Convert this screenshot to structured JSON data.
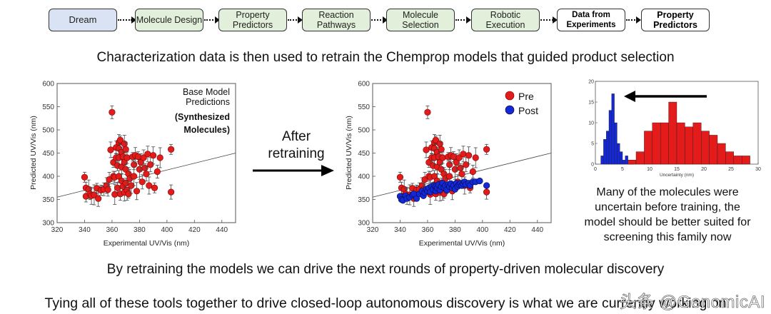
{
  "pipeline": {
    "steps": [
      {
        "label": "Dream",
        "style": "dream"
      },
      {
        "label": "Molecule Design",
        "style": "green"
      },
      {
        "label": "Property Predictors",
        "style": "green"
      },
      {
        "label": "Reaction Pathways",
        "style": "green"
      },
      {
        "label": "Molecule Selection",
        "style": "green"
      },
      {
        "label": "Robotic Execution",
        "style": "green"
      },
      {
        "label": "Data from Experiments",
        "style": "bold"
      },
      {
        "label": "Property Predictors",
        "style": "bold"
      }
    ]
  },
  "headline_top": "Characterization data is then used to retrain the Chemprop models that guided product selection",
  "headline_mid": "By retraining the models we can drive the next rounds of property-driven molecular discovery",
  "headline_bottom": "Tying all of these tools together to drive closed-loop autonomous discovery is what we are currently working on",
  "arrow_label": "After retraining",
  "arrow_label_line1": "After",
  "arrow_label_line2": "retraining",
  "note_text_line1": "Many of the molecules were",
  "note_text_line2": "uncertain before training, the",
  "note_text_line3": "model should be better suited for",
  "note_text_line4": "screening this family now",
  "watermark": "头条 @GenomicAI",
  "colors": {
    "pre": "#e31b1b",
    "post": "#1428d8",
    "dream": "#dae3f3",
    "green": "#e2efda"
  },
  "chart_data": [
    {
      "type": "scatter",
      "annotation_line1": "Base Model",
      "annotation_line2": "Predictions",
      "annotation_line3": "(Synthesized",
      "annotation_line4": "Molecules)",
      "xlabel": "Experimental UV/Vis (nm)",
      "ylabel": "Predicted UV/Vis (nm)",
      "xlim": [
        320,
        450
      ],
      "ylim": [
        300,
        600
      ],
      "xticks": [
        "320",
        "340",
        "360",
        "380",
        "400",
        "420",
        "440"
      ],
      "yticks": [
        "300",
        "350",
        "400",
        "450",
        "500",
        "550",
        "600"
      ],
      "parity_line": true,
      "series": [
        {
          "points": [
            [
              340,
              398
            ],
            [
              341,
              375
            ],
            [
              341,
              357
            ],
            [
              343,
              372
            ],
            [
              344,
              362
            ],
            [
              345,
              358
            ],
            [
              347,
              360
            ],
            [
              349,
              374
            ],
            [
              350,
              352
            ],
            [
              352,
              370
            ],
            [
              354,
              372
            ],
            [
              356,
              380
            ],
            [
              357,
              371
            ],
            [
              358,
              393
            ],
            [
              359,
              457
            ],
            [
              360,
              538
            ],
            [
              361,
              400
            ],
            [
              361,
              430
            ],
            [
              362,
              398
            ],
            [
              362,
              361
            ],
            [
              363,
              462
            ],
            [
              363,
              440
            ],
            [
              364,
              423
            ],
            [
              364,
              375
            ],
            [
              365,
              473
            ],
            [
              365,
              460
            ],
            [
              365,
              440
            ],
            [
              365,
              400
            ],
            [
              366,
              478
            ],
            [
              366,
              362
            ],
            [
              367,
              452
            ],
            [
              367,
              420
            ],
            [
              367,
              390
            ],
            [
              368,
              378
            ],
            [
              368,
              442
            ],
            [
              369,
              470
            ],
            [
              369,
              430
            ],
            [
              369,
              365
            ],
            [
              370,
              458
            ],
            [
              370,
              415
            ],
            [
              370,
              385
            ],
            [
              371,
              440
            ],
            [
              371,
              370
            ],
            [
              372,
              405
            ],
            [
              372,
              362
            ],
            [
              373,
              395
            ],
            [
              374,
              380
            ],
            [
              375,
              442
            ],
            [
              376,
              425
            ],
            [
              376,
              400
            ],
            [
              377,
              445
            ],
            [
              378,
              368
            ],
            [
              379,
              442
            ],
            [
              380,
              415
            ],
            [
              381,
              430
            ],
            [
              382,
              388
            ],
            [
              383,
              440
            ],
            [
              384,
              418
            ],
            [
              385,
              405
            ],
            [
              386,
              448
            ],
            [
              387,
              380
            ],
            [
              388,
              425
            ],
            [
              390,
              445
            ],
            [
              391,
              375
            ],
            [
              393,
              410
            ],
            [
              395,
              440
            ],
            [
              403,
              458
            ],
            [
              403,
              366
            ]
          ]
        }
      ]
    },
    {
      "type": "scatter",
      "xlabel": "Experimental UV/Vis (nm)",
      "ylabel": "Predicted UV/Vis (nm)",
      "xlim": [
        320,
        450
      ],
      "ylim": [
        300,
        600
      ],
      "xticks": [
        "320",
        "340",
        "360",
        "380",
        "400",
        "420",
        "440"
      ],
      "yticks": [
        "300",
        "350",
        "400",
        "450",
        "500",
        "550",
        "600"
      ],
      "legend": "top-right",
      "parity_line": true,
      "series": [
        {
          "name": "Pre",
          "points": [
            [
              340,
              398
            ],
            [
              341,
              375
            ],
            [
              341,
              357
            ],
            [
              343,
              372
            ],
            [
              344,
              362
            ],
            [
              345,
              358
            ],
            [
              347,
              360
            ],
            [
              349,
              374
            ],
            [
              350,
              352
            ],
            [
              352,
              370
            ],
            [
              354,
              372
            ],
            [
              356,
              380
            ],
            [
              357,
              371
            ],
            [
              358,
              393
            ],
            [
              359,
              457
            ],
            [
              360,
              538
            ],
            [
              361,
              400
            ],
            [
              361,
              430
            ],
            [
              362,
              398
            ],
            [
              362,
              361
            ],
            [
              363,
              462
            ],
            [
              363,
              440
            ],
            [
              364,
              423
            ],
            [
              364,
              375
            ],
            [
              365,
              473
            ],
            [
              365,
              460
            ],
            [
              365,
              440
            ],
            [
              365,
              400
            ],
            [
              366,
              478
            ],
            [
              366,
              362
            ],
            [
              367,
              452
            ],
            [
              367,
              420
            ],
            [
              367,
              390
            ],
            [
              368,
              378
            ],
            [
              368,
              442
            ],
            [
              369,
              470
            ],
            [
              369,
              430
            ],
            [
              369,
              365
            ],
            [
              370,
              458
            ],
            [
              370,
              415
            ],
            [
              370,
              385
            ],
            [
              371,
              440
            ],
            [
              371,
              370
            ],
            [
              372,
              405
            ],
            [
              372,
              362
            ],
            [
              373,
              395
            ],
            [
              374,
              380
            ],
            [
              375,
              442
            ],
            [
              376,
              425
            ],
            [
              376,
              400
            ],
            [
              377,
              445
            ],
            [
              378,
              368
            ],
            [
              379,
              442
            ],
            [
              380,
              415
            ],
            [
              381,
              430
            ],
            [
              382,
              388
            ],
            [
              383,
              440
            ],
            [
              384,
              418
            ],
            [
              385,
              405
            ],
            [
              386,
              448
            ],
            [
              387,
              380
            ],
            [
              388,
              425
            ],
            [
              390,
              445
            ],
            [
              391,
              375
            ],
            [
              393,
              410
            ],
            [
              395,
              440
            ],
            [
              403,
              458
            ],
            [
              403,
              366
            ]
          ]
        },
        {
          "name": "Post",
          "points": [
            [
              340,
              357
            ],
            [
              341,
              350
            ],
            [
              342,
              348
            ],
            [
              344,
              358
            ],
            [
              345,
              352
            ],
            [
              347,
              355
            ],
            [
              349,
              360
            ],
            [
              350,
              362
            ],
            [
              352,
              352
            ],
            [
              354,
              362
            ],
            [
              356,
              368
            ],
            [
              357,
              358
            ],
            [
              358,
              365
            ],
            [
              359,
              372
            ],
            [
              360,
              368
            ],
            [
              361,
              375
            ],
            [
              362,
              366
            ],
            [
              363,
              378
            ],
            [
              364,
              372
            ],
            [
              365,
              380
            ],
            [
              366,
              368
            ],
            [
              366,
              378
            ],
            [
              367,
              375
            ],
            [
              368,
              382
            ],
            [
              369,
              370
            ],
            [
              370,
              378
            ],
            [
              371,
              385
            ],
            [
              372,
              376
            ],
            [
              373,
              380
            ],
            [
              374,
              370
            ],
            [
              375,
              382
            ],
            [
              376,
              378
            ],
            [
              377,
              384
            ],
            [
              378,
              375
            ],
            [
              379,
              380
            ],
            [
              380,
              372
            ],
            [
              381,
              385
            ],
            [
              382,
              378
            ],
            [
              383,
              382
            ],
            [
              384,
              385
            ],
            [
              385,
              380
            ],
            [
              386,
              384
            ],
            [
              387,
              388
            ],
            [
              388,
              382
            ],
            [
              390,
              385
            ],
            [
              391,
              380
            ],
            [
              393,
              388
            ],
            [
              395,
              388
            ],
            [
              398,
              390
            ],
            [
              403,
              380
            ]
          ]
        }
      ]
    },
    {
      "type": "bar",
      "xlabel": "Uncertainty (nm)",
      "xlim": [
        0,
        30
      ],
      "ylim": [
        0,
        20
      ],
      "xticks": [
        "0",
        "5",
        "10",
        "15",
        "20",
        "25",
        "30"
      ],
      "yticks": [
        "0",
        "5",
        "10",
        "15",
        "20"
      ],
      "series": [
        {
          "name": "Post",
          "bins": [
            [
              1.0,
              1.5,
              2
            ],
            [
              1.5,
              2.0,
              6
            ],
            [
              2.0,
              2.5,
              8
            ],
            [
              2.5,
              3.0,
              13
            ],
            [
              3.0,
              3.5,
              17
            ],
            [
              3.5,
              4.0,
              10
            ],
            [
              4.0,
              4.5,
              5
            ],
            [
              4.5,
              5.0,
              3
            ],
            [
              5.0,
              5.5,
              1
            ],
            [
              5.5,
              6.0,
              2
            ],
            [
              6.0,
              6.5,
              1
            ],
            [
              6.5,
              7.0,
              1
            ]
          ]
        },
        {
          "name": "Pre",
          "bins": [
            [
              6.0,
              7.5,
              1
            ],
            [
              7.5,
              9.0,
              3
            ],
            [
              9.0,
              10.5,
              8
            ],
            [
              10.5,
              12.0,
              10
            ],
            [
              12.0,
              13.5,
              10
            ],
            [
              13.5,
              15.0,
              15
            ],
            [
              15.0,
              16.5,
              10
            ],
            [
              16.5,
              18.0,
              9
            ],
            [
              18.0,
              19.5,
              10
            ],
            [
              19.5,
              21.0,
              8
            ],
            [
              21.0,
              22.5,
              7
            ],
            [
              22.5,
              24.0,
              5
            ],
            [
              24.0,
              25.5,
              3
            ],
            [
              25.5,
              27.0,
              2
            ],
            [
              27.0,
              28.5,
              2
            ]
          ]
        }
      ]
    }
  ]
}
